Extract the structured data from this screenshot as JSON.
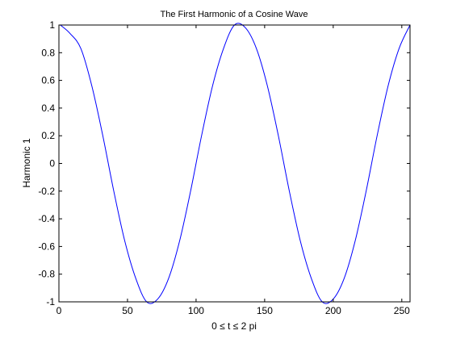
{
  "chart_data": {
    "type": "line",
    "title": "The First Harmonic of a Cosine Wave",
    "xlabel": "0 ≤ t ≤ 2 pi",
    "ylabel": "Harmonic 1",
    "xlim": [
      0,
      256
    ],
    "ylim": [
      -1,
      1
    ],
    "x_ticks": [
      "0",
      "50",
      "100",
      "150",
      "200",
      "250"
    ],
    "y_ticks": [
      "1",
      "0.8",
      "0.6",
      "0.4",
      "0.2",
      "0",
      "-0.2",
      "-0.4",
      "-0.6",
      "-0.8",
      "-1"
    ],
    "grid": false,
    "series": [
      {
        "color": "#0000ff",
        "x": [
          1,
          8,
          16,
          24,
          32,
          40,
          48,
          56,
          64,
          72,
          80,
          88,
          96,
          104,
          112,
          120,
          128,
          136,
          144,
          152,
          160,
          168,
          176,
          184,
          192,
          200,
          208,
          216,
          224,
          232,
          240,
          248,
          256
        ],
        "y": [
          1,
          0.94,
          0.83,
          0.56,
          0.2,
          -0.2,
          -0.56,
          -0.83,
          -1,
          -0.98,
          -0.83,
          -0.56,
          -0.2,
          0.2,
          0.56,
          0.83,
          1,
          0.98,
          0.83,
          0.56,
          0.2,
          -0.2,
          -0.56,
          -0.83,
          -1,
          -0.98,
          -0.83,
          -0.56,
          -0.2,
          0.2,
          0.56,
          0.83,
          1
        ]
      }
    ]
  }
}
